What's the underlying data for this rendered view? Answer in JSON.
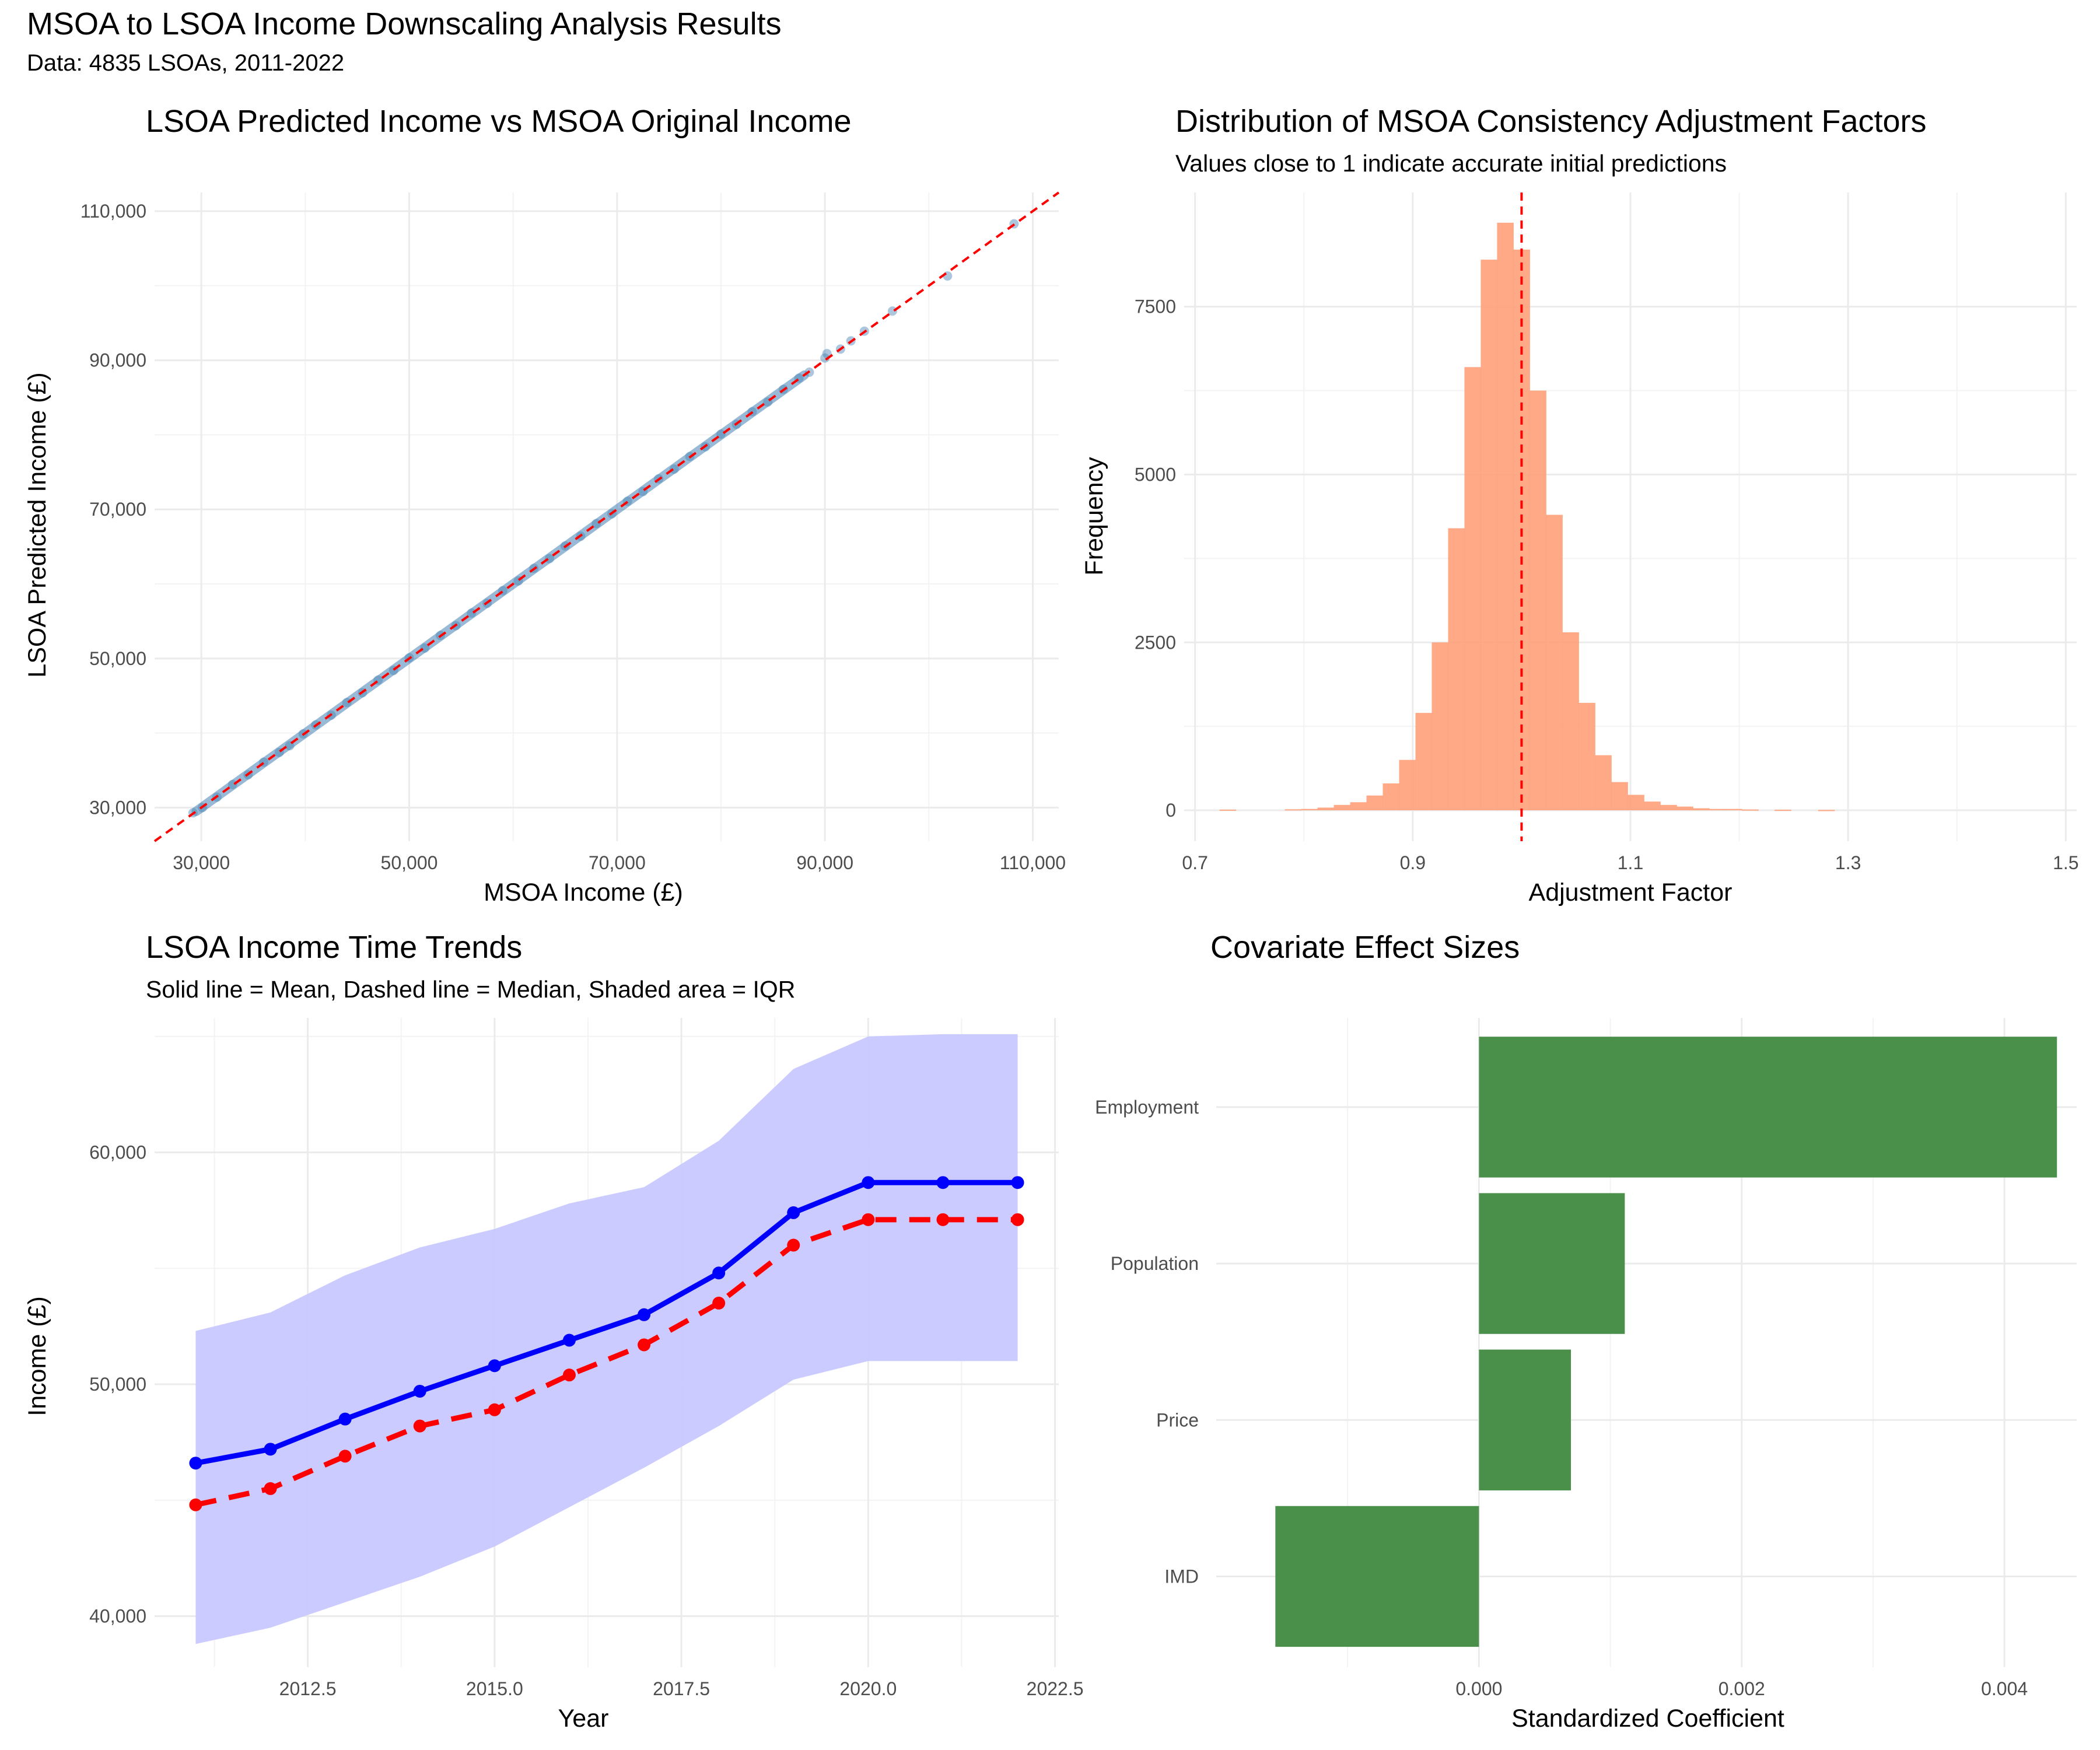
{
  "title": "MSOA to LSOA Income Downscaling Analysis Results",
  "subtitle": "Data: 4835 LSOAs, 2011-2022",
  "colors": {
    "scatter_points": "#4682b4",
    "reference_line": "#ff0000",
    "histogram_fill": "#ffa07a",
    "mean_line": "#0000ff",
    "median_line": "#ff0000",
    "iqr_fill": "#c8c8ff",
    "bar_fill": "#4a8f4a"
  },
  "chart_data": [
    {
      "type": "scatter",
      "title": "LSOA Predicted Income vs MSOA Original Income",
      "xlabel": "MSOA Income (£)",
      "ylabel": "LSOA Predicted Income (£)",
      "xlim": [
        25500,
        112500
      ],
      "ylim": [
        25500,
        112500
      ],
      "x_ticks": [
        30000,
        50000,
        70000,
        90000,
        110000
      ],
      "y_ticks": [
        30000,
        50000,
        70000,
        90000,
        110000
      ],
      "x_tick_labels": [
        "30,000",
        "50,000",
        "70,000",
        "90,000",
        "110,000"
      ],
      "y_tick_labels": [
        "30,000",
        "50,000",
        "70,000",
        "90,000",
        "110,000"
      ],
      "reference_line": "y = x (dashed)",
      "grid": true,
      "points": [
        [
          29200,
          29300
        ],
        [
          30100,
          30000
        ],
        [
          31500,
          31400
        ],
        [
          33000,
          33100
        ],
        [
          34500,
          34400
        ],
        [
          36000,
          36100
        ],
        [
          37500,
          37400
        ],
        [
          38500,
          38300
        ],
        [
          39800,
          39900
        ],
        [
          41000,
          41100
        ],
        [
          42500,
          42400
        ],
        [
          44000,
          44100
        ],
        [
          45500,
          45400
        ],
        [
          47000,
          47100
        ],
        [
          48500,
          48400
        ],
        [
          50000,
          50100
        ],
        [
          51500,
          51400
        ],
        [
          53000,
          53100
        ],
        [
          54500,
          54400
        ],
        [
          56000,
          56100
        ],
        [
          57500,
          57400
        ],
        [
          59000,
          59100
        ],
        [
          60500,
          60400
        ],
        [
          62000,
          62100
        ],
        [
          63500,
          63400
        ],
        [
          65000,
          65100
        ],
        [
          66500,
          66400
        ],
        [
          68000,
          68100
        ],
        [
          69500,
          69400
        ],
        [
          71000,
          71100
        ],
        [
          72500,
          72400
        ],
        [
          74000,
          74100
        ],
        [
          75500,
          75400
        ],
        [
          77000,
          77100
        ],
        [
          78500,
          78400
        ],
        [
          80000,
          80100
        ],
        [
          81500,
          81400
        ],
        [
          83000,
          83100
        ],
        [
          84500,
          84400
        ],
        [
          86000,
          86100
        ],
        [
          87500,
          87600
        ],
        [
          88500,
          88400
        ],
        [
          90000,
          90300
        ],
        [
          90200,
          90900
        ],
        [
          91500,
          91500
        ],
        [
          92500,
          92600
        ],
        [
          93800,
          93900
        ],
        [
          96500,
          96600
        ],
        [
          101800,
          101300
        ],
        [
          108200,
          108300
        ]
      ]
    },
    {
      "type": "bar",
      "title": "Distribution of MSOA Consistency Adjustment Factors",
      "subtitle": "Values close to 1 indicate accurate initial predictions",
      "xlabel": "Adjustment Factor",
      "ylabel": "Frequency",
      "xlim": [
        0.7,
        1.5
      ],
      "ylim": [
        0,
        9200
      ],
      "x_ticks": [
        0.7,
        0.9,
        1.1,
        1.3,
        1.5
      ],
      "y_ticks": [
        0,
        2500,
        5000,
        7500
      ],
      "x_tick_labels": [
        "0.7",
        "0.9",
        "1.1",
        "1.3",
        "1.5"
      ],
      "y_tick_labels": [
        "0",
        "2500",
        "5000",
        "7500"
      ],
      "bin_width": 0.015,
      "reference_line": 1.0,
      "grid": true,
      "bins": [
        [
          0.73,
          10
        ],
        [
          0.79,
          15
        ],
        [
          0.805,
          20
        ],
        [
          0.82,
          40
        ],
        [
          0.835,
          80
        ],
        [
          0.85,
          120
        ],
        [
          0.865,
          220
        ],
        [
          0.88,
          400
        ],
        [
          0.895,
          750
        ],
        [
          0.91,
          1450
        ],
        [
          0.925,
          2500
        ],
        [
          0.94,
          4200
        ],
        [
          0.955,
          6600
        ],
        [
          0.97,
          8200
        ],
        [
          0.985,
          8750
        ],
        [
          1.0,
          8350
        ],
        [
          1.015,
          6250
        ],
        [
          1.03,
          4400
        ],
        [
          1.045,
          2650
        ],
        [
          1.06,
          1600
        ],
        [
          1.075,
          820
        ],
        [
          1.09,
          420
        ],
        [
          1.105,
          230
        ],
        [
          1.12,
          130
        ],
        [
          1.135,
          80
        ],
        [
          1.15,
          55
        ],
        [
          1.165,
          30
        ],
        [
          1.18,
          20
        ],
        [
          1.195,
          20
        ],
        [
          1.21,
          12
        ],
        [
          1.24,
          8
        ],
        [
          1.28,
          5
        ]
      ]
    },
    {
      "type": "line",
      "title": "LSOA Income Time Trends",
      "subtitle": "Solid line = Mean, Dashed line = Median, Shaded area = IQR",
      "xlabel": "Year",
      "ylabel": "Income (£)",
      "xlim": [
        2010.45,
        2022.55
      ],
      "ylim": [
        37800,
        65800
      ],
      "x_ticks": [
        2012.5,
        2015.0,
        2017.5,
        2020.0,
        2022.5
      ],
      "y_ticks": [
        40000,
        50000,
        60000
      ],
      "x_tick_labels": [
        "2012.5",
        "2015.0",
        "2017.5",
        "2020.0",
        "2022.5"
      ],
      "y_tick_labels": [
        "40,000",
        "50,000",
        "60,000"
      ],
      "grid": true,
      "x": [
        2011,
        2012,
        2013,
        2014,
        2015,
        2016,
        2017,
        2018,
        2019,
        2020,
        2021,
        2022
      ],
      "series": [
        {
          "values": [
            46600,
            47200,
            48500,
            49700,
            50800,
            51900,
            53000,
            54800,
            57400,
            58700,
            58700,
            58700
          ]
        },
        {
          "values": [
            44800,
            45500,
            46900,
            48200,
            48900,
            50400,
            51700,
            53500,
            56000,
            57100,
            57100,
            57100
          ]
        }
      ],
      "iqr_lower": [
        38800,
        39500,
        40600,
        41700,
        43000,
        44700,
        46400,
        48200,
        50200,
        51000,
        51000,
        51000
      ],
      "iqr_upper": [
        52300,
        53100,
        54700,
        55900,
        56700,
        57800,
        58500,
        60500,
        63600,
        65000,
        65100,
        65100
      ]
    },
    {
      "type": "bar",
      "orientation": "horizontal",
      "title": "Covariate Effect Sizes",
      "xlabel": "Standardized Coefficient",
      "ylabel": "",
      "xlim": [
        -0.002,
        0.00455
      ],
      "x_ticks": [
        0.0,
        0.002,
        0.004
      ],
      "x_tick_labels": [
        "0.000",
        "0.002",
        "0.004"
      ],
      "grid": true,
      "categories": [
        "Employment",
        "Population",
        "Price",
        "IMD"
      ],
      "values": [
        0.0044,
        0.00111,
        0.0007,
        -0.00155
      ]
    }
  ]
}
